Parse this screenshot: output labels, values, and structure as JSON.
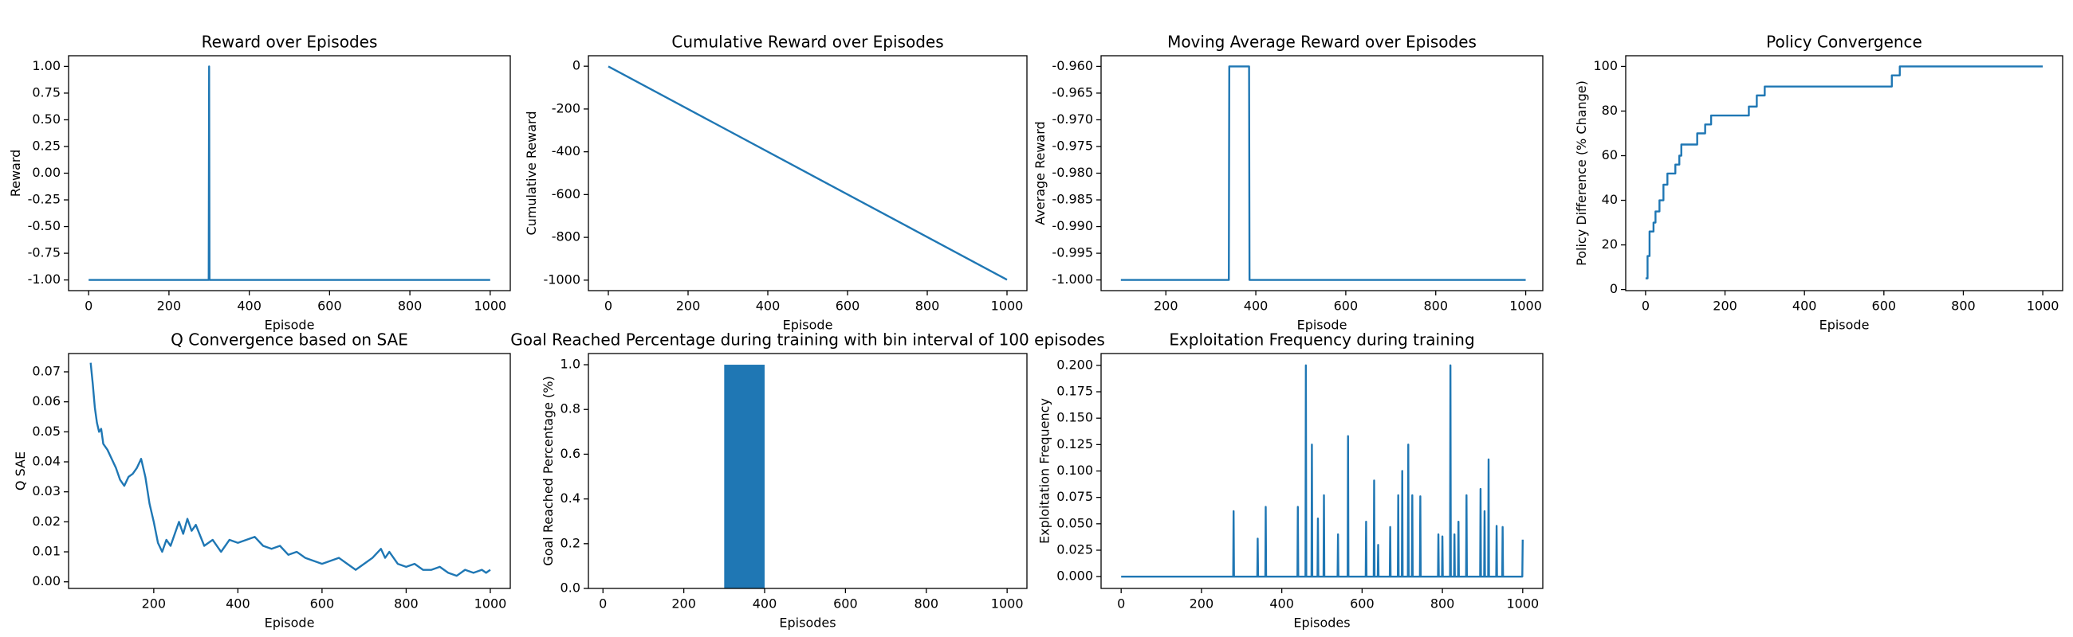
{
  "chart_data": [
    {
      "type": "line",
      "title": "Reward over Episodes",
      "xlabel": "Episode",
      "ylabel": "Reward",
      "color": "#1f77b4",
      "x": [
        0,
        299,
        300,
        301,
        1000
      ],
      "values": [
        -1,
        -1,
        1,
        -1,
        -1
      ],
      "xlim": [
        -50,
        1050
      ],
      "ylim": [
        -1.1,
        1.1
      ],
      "xticks": [
        0,
        200,
        400,
        600,
        800,
        1000
      ],
      "yticks": [
        {
          "value": -1,
          "label": "-1.00"
        },
        -0.75,
        {
          "value": -0.5,
          "label": "-0.50"
        },
        -0.25,
        {
          "value": 0,
          "label": "0.00"
        },
        0.25,
        {
          "value": 0.5,
          "label": "0.50"
        },
        0.75,
        {
          "value": 1,
          "label": "1.00"
        }
      ]
    },
    {
      "type": "line",
      "title": "Cumulative Reward over Episodes",
      "xlabel": "Episode",
      "ylabel": "Cumulative Reward",
      "color": "#1f77b4",
      "x": [
        0,
        1000
      ],
      "values": [
        -1,
        -998
      ],
      "xlim": [
        -50,
        1050
      ],
      "ylim": [
        -1049,
        49
      ],
      "xticks": [
        0,
        200,
        400,
        600,
        800,
        1000
      ],
      "yticks": [
        0,
        -200,
        -400,
        -600,
        -800,
        -1000
      ]
    },
    {
      "type": "line",
      "title": "Moving Average Reward over Episodes",
      "xlabel": "Episode",
      "ylabel": "Average Reward",
      "color": "#1f77b4",
      "x": [
        100,
        340,
        341,
        385,
        386,
        1000
      ],
      "values": [
        -1,
        -1,
        -0.96,
        -0.96,
        -1,
        -1
      ],
      "xlim": [
        56,
        1038
      ],
      "ylim": [
        -1.002,
        -0.958
      ],
      "xticks": [
        200,
        400,
        600,
        800,
        1000
      ],
      "yticks": [
        {
          "value": -1,
          "label": "-1.000"
        },
        -0.995,
        {
          "value": -0.99,
          "label": "-0.990"
        },
        -0.985,
        {
          "value": -0.98,
          "label": "-0.980"
        },
        -0.975,
        {
          "value": -0.97,
          "label": "-0.970"
        },
        -0.965,
        {
          "value": -0.96,
          "label": "-0.960"
        }
      ]
    },
    {
      "type": "line",
      "title": "Policy Convergence",
      "xlabel": "Episode",
      "ylabel": "Policy Difference (% Change)",
      "color": "#1f77b4",
      "x": [
        0,
        5,
        5,
        10,
        10,
        20,
        20,
        25,
        25,
        35,
        35,
        45,
        45,
        55,
        55,
        75,
        75,
        85,
        85,
        90,
        90,
        130,
        130,
        150,
        150,
        165,
        165,
        260,
        260,
        280,
        280,
        300,
        300,
        620,
        620,
        640,
        640,
        1000
      ],
      "values": [
        5,
        5,
        15,
        15,
        26,
        26,
        30,
        30,
        35,
        35,
        40,
        40,
        47,
        47,
        52,
        52,
        56,
        56,
        60,
        60,
        65,
        65,
        70,
        70,
        74,
        74,
        78,
        78,
        82,
        82,
        87,
        87,
        91,
        91,
        96,
        96,
        100,
        100
      ],
      "xlim": [
        -50,
        1050
      ],
      "ylim": [
        -0.5,
        104.8
      ],
      "xticks": [
        0,
        200,
        400,
        600,
        800,
        1000
      ],
      "yticks": [
        0,
        20,
        40,
        60,
        80,
        100
      ]
    },
    {
      "type": "line",
      "title": "Q Convergence based on SAE",
      "xlabel": "Episode",
      "ylabel": "Q SAE",
      "color": "#1f77b4",
      "x": [
        50,
        55,
        60,
        65,
        70,
        75,
        80,
        90,
        100,
        110,
        120,
        130,
        140,
        150,
        160,
        170,
        180,
        190,
        200,
        210,
        220,
        230,
        240,
        250,
        260,
        270,
        280,
        290,
        300,
        320,
        340,
        360,
        380,
        400,
        420,
        440,
        460,
        480,
        500,
        520,
        540,
        560,
        580,
        600,
        620,
        640,
        660,
        680,
        700,
        720,
        740,
        750,
        760,
        780,
        800,
        820,
        840,
        860,
        880,
        900,
        920,
        940,
        960,
        980,
        990,
        1000
      ],
      "values": [
        0.073,
        0.066,
        0.058,
        0.053,
        0.05,
        0.051,
        0.046,
        0.044,
        0.041,
        0.038,
        0.034,
        0.032,
        0.035,
        0.036,
        0.038,
        0.041,
        0.035,
        0.026,
        0.02,
        0.013,
        0.01,
        0.014,
        0.012,
        0.016,
        0.02,
        0.016,
        0.021,
        0.017,
        0.019,
        0.012,
        0.014,
        0.01,
        0.014,
        0.013,
        0.014,
        0.015,
        0.012,
        0.011,
        0.012,
        0.009,
        0.01,
        0.008,
        0.007,
        0.006,
        0.007,
        0.008,
        0.006,
        0.004,
        0.006,
        0.008,
        0.011,
        0.008,
        0.01,
        0.006,
        0.005,
        0.006,
        0.004,
        0.004,
        0.005,
        0.003,
        0.002,
        0.004,
        0.003,
        0.004,
        0.003,
        0.004
      ],
      "xlim": [
        -2.5,
        1047.5
      ],
      "ylim": [
        -0.0022,
        0.0761
      ],
      "xticks": [
        200,
        400,
        600,
        800,
        1000
      ],
      "yticks": [
        {
          "value": 0,
          "label": "0.00"
        },
        0.01,
        0.02,
        0.03,
        0.04,
        0.05,
        0.06,
        0.07
      ]
    },
    {
      "type": "histogram",
      "title": "Goal Reached Percentage during training with bin interval of 100 episodes",
      "xlabel": "Episodes",
      "ylabel": "Goal Reached Percentage (%)",
      "color": "#1f77b4",
      "bins": [
        0,
        100,
        200,
        300,
        400,
        500,
        600,
        700,
        800,
        900,
        1000
      ],
      "values": [
        0,
        0,
        0,
        1,
        0,
        0,
        0,
        0,
        0,
        0
      ],
      "xlim": [
        -36,
        1049
      ],
      "ylim": [
        0,
        1.05
      ],
      "xticks": [
        0,
        200,
        400,
        600,
        800,
        1000
      ],
      "yticks": [
        {
          "value": 0,
          "label": "0.0"
        },
        0.2,
        0.4,
        0.6,
        0.8,
        {
          "value": 1,
          "label": "1.0"
        }
      ]
    },
    {
      "type": "line",
      "title": "Exploitation Frequency during training",
      "xlabel": "Episodes",
      "ylabel": "Exploitation Frequency",
      "color": "#1f77b4",
      "x": [
        0,
        279,
        280,
        281,
        339,
        340,
        341,
        359,
        360,
        361,
        439,
        440,
        441,
        459,
        460,
        461,
        474,
        475,
        476,
        489,
        490,
        491,
        504,
        505,
        506,
        539,
        540,
        541,
        564,
        565,
        566,
        609,
        610,
        611,
        629,
        630,
        631,
        639,
        640,
        641,
        669,
        670,
        671,
        689,
        690,
        691,
        699,
        700,
        701,
        714,
        715,
        716,
        724,
        725,
        726,
        744,
        745,
        746,
        789,
        790,
        791,
        799,
        800,
        801,
        819,
        820,
        821,
        829,
        830,
        831,
        839,
        840,
        841,
        859,
        860,
        861,
        894,
        895,
        896,
        904,
        905,
        906,
        914,
        915,
        916,
        934,
        935,
        936,
        949,
        950,
        951,
        999,
        1000
      ],
      "values": [
        0,
        0,
        0.062,
        0,
        0,
        0.036,
        0,
        0,
        0.066,
        0,
        0,
        0.066,
        0,
        0,
        0.2,
        0,
        0,
        0.125,
        0,
        0,
        0.055,
        0,
        0,
        0.077,
        0,
        0,
        0.04,
        0,
        0,
        0.133,
        0,
        0,
        0.052,
        0,
        0,
        0.091,
        0,
        0,
        0.03,
        0,
        0,
        0.047,
        0,
        0,
        0.077,
        0,
        0,
        0.1,
        0,
        0,
        0.125,
        0,
        0,
        0.077,
        0,
        0,
        0.076,
        0,
        0,
        0.04,
        0,
        0,
        0.038,
        0,
        0,
        0.2,
        0,
        0,
        0.04,
        0,
        0,
        0.052,
        0,
        0,
        0.077,
        0,
        0,
        0.083,
        0,
        0,
        0.062,
        0,
        0,
        0.111,
        0,
        0,
        0.048,
        0,
        0,
        0.047,
        0,
        0,
        0.035
      ],
      "xlim": [
        -50,
        1050
      ],
      "ylim": [
        -0.0112,
        0.2112
      ],
      "xticks": [
        0,
        200,
        400,
        600,
        800,
        1000
      ],
      "yticks": [
        {
          "value": 0,
          "label": "0.000"
        },
        0.025,
        {
          "value": 0.05,
          "label": "0.050"
        },
        0.075,
        {
          "value": 0.1,
          "label": "0.100"
        },
        0.125,
        {
          "value": 0.15,
          "label": "0.150"
        },
        0.175,
        {
          "value": 0.2,
          "label": "0.200"
        }
      ]
    }
  ]
}
